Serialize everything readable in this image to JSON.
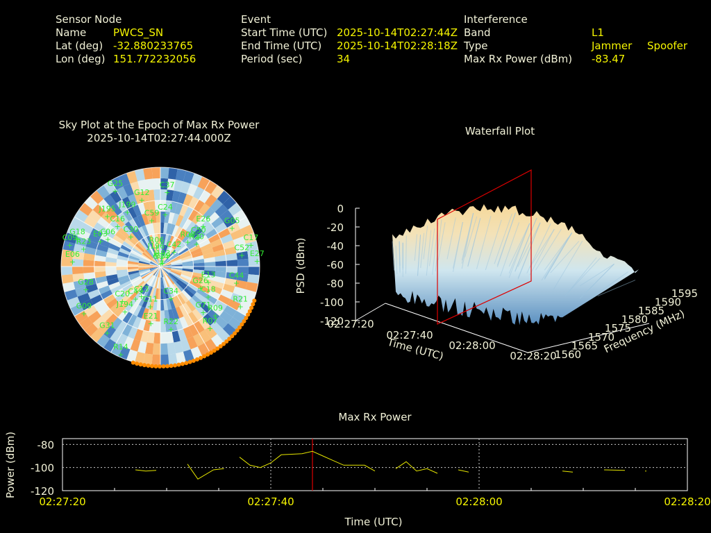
{
  "header": {
    "sensor": {
      "heading": "Sensor Node",
      "rows": [
        {
          "label": "Name",
          "value": "PWCS_SN"
        },
        {
          "label": "Lat (deg)",
          "value": "-32.880233765"
        },
        {
          "label": "Lon (deg)",
          "value": "151.772232056"
        }
      ]
    },
    "event": {
      "heading": "Event",
      "rows": [
        {
          "label": "Start Time (UTC)",
          "value": "2025-10-14T02:27:44Z"
        },
        {
          "label": "End Time (UTC)",
          "value": "2025-10-14T02:28:18Z"
        },
        {
          "label": "Period (sec)",
          "value": "34"
        }
      ]
    },
    "interference": {
      "heading": "Interference",
      "rows": [
        {
          "label": "Band",
          "value": "L1",
          "value2": ""
        },
        {
          "label": "Type",
          "value": "Jammer",
          "value2": "Spoofer"
        },
        {
          "label": "Max Rx Power (dBm)",
          "value": "-83.47",
          "value2": ""
        }
      ]
    }
  },
  "colors": {
    "label": "#f2f2d8",
    "value": "#f5f500",
    "satellite": "#33ee33",
    "track": "#ff8c00",
    "marker": "#dd0000",
    "line": "#e6e600"
  },
  "chart_data": [
    {
      "type": "skyplot",
      "title": "Sky Plot at the Epoch of Max Rx Power",
      "subtitle": "2025-10-14T02:27:44.000Z",
      "satellites": [
        {
          "id": "G14",
          "az": 5,
          "el": 85
        },
        {
          "id": "J193",
          "az": 10,
          "el": 82
        },
        {
          "id": "G29",
          "az": 20,
          "el": 84
        },
        {
          "id": "J196",
          "az": 345,
          "el": 75
        },
        {
          "id": "R06",
          "az": 350,
          "el": 70
        },
        {
          "id": "C42",
          "az": 38,
          "el": 70
        },
        {
          "id": "R08",
          "az": 45,
          "el": 55
        },
        {
          "id": "R20",
          "az": 55,
          "el": 50
        },
        {
          "id": "C50",
          "az": 50,
          "el": 45
        },
        {
          "id": "C30",
          "az": 318,
          "el": 50
        },
        {
          "id": "C59",
          "az": 350,
          "el": 45
        },
        {
          "id": "C24",
          "az": 5,
          "el": 40
        },
        {
          "id": "E26",
          "az": 45,
          "el": 35
        },
        {
          "id": "C16",
          "az": 315,
          "el": 35
        },
        {
          "id": "J199",
          "az": 330,
          "el": 30
        },
        {
          "id": "G12",
          "az": 345,
          "el": 25
        },
        {
          "id": "C37",
          "az": 5,
          "el": 20
        },
        {
          "id": "C06",
          "az": 300,
          "el": 35
        },
        {
          "id": "E03",
          "az": 295,
          "el": 30
        },
        {
          "id": "J195",
          "az": 315,
          "el": 22
        },
        {
          "id": "G05",
          "az": 60,
          "el": 15
        },
        {
          "id": "R23",
          "az": 285,
          "el": 18
        },
        {
          "id": "G18",
          "az": 290,
          "el": 10
        },
        {
          "id": "C09",
          "az": 285,
          "el": 5
        },
        {
          "id": "C52",
          "az": 80,
          "el": 15
        },
        {
          "id": "C17",
          "az": 75,
          "el": 5
        },
        {
          "id": "E27",
          "az": 85,
          "el": 2
        },
        {
          "id": "G25",
          "az": 330,
          "el": 8
        },
        {
          "id": "E06",
          "az": 275,
          "el": 10
        },
        {
          "id": "E13",
          "az": 105,
          "el": 45
        },
        {
          "id": "G26",
          "az": 115,
          "el": 50
        },
        {
          "id": "C18",
          "az": 120,
          "el": 40
        },
        {
          "id": "C44",
          "az": 100,
          "el": 20
        },
        {
          "id": "G28",
          "az": 255,
          "el": 20
        },
        {
          "id": "C49",
          "az": 220,
          "el": 55
        },
        {
          "id": "C13",
          "az": 215,
          "el": 60
        },
        {
          "id": "C20",
          "az": 230,
          "el": 45
        },
        {
          "id": "C11",
          "az": 195,
          "el": 55
        },
        {
          "id": "C34",
          "az": 160,
          "el": 62
        },
        {
          "id": "G71",
          "az": 135,
          "el": 35
        },
        {
          "id": "R09",
          "az": 130,
          "el": 25
        },
        {
          "id": "R21",
          "az": 115,
          "el": 10
        },
        {
          "id": "R07",
          "az": 140,
          "el": 20
        },
        {
          "id": "R22",
          "az": 170,
          "el": 35
        },
        {
          "id": "E21",
          "az": 190,
          "el": 40
        },
        {
          "id": "J194",
          "az": 220,
          "el": 40
        },
        {
          "id": "G09",
          "az": 240,
          "el": 10
        },
        {
          "id": "G31",
          "az": 220,
          "el": 15
        },
        {
          "id": "R14",
          "az": 205,
          "el": 5
        }
      ]
    },
    {
      "type": "surface3d",
      "title": "Waterfall Plot",
      "xlabel": "Time (UTC)",
      "ylabel": "Frequency (MHz)",
      "zlabel": "PSD (dBm)",
      "x_ticks": [
        "02:27:20",
        "02:27:40",
        "02:28:00",
        "02:28:20"
      ],
      "y_ticks": [
        "1560",
        "1565",
        "1570",
        "1575",
        "1580",
        "1585",
        "1590",
        "1595"
      ],
      "z_ticks": [
        "0",
        "-20",
        "-40",
        "-60",
        "-80",
        "-100",
        "-120"
      ],
      "xlim": [
        "02:27:20",
        "02:28:20"
      ],
      "ylim": [
        1560,
        1595
      ],
      "zlim": [
        -120,
        0
      ],
      "marker_time": "02:27:44"
    },
    {
      "type": "line",
      "title": "Max Rx Power",
      "xlabel": "Time (UTC)",
      "ylabel": "Power (dBm)",
      "x_ticks": [
        "02:27:20",
        "02:27:40",
        "02:28:00",
        "02:28:20"
      ],
      "y_ticks": [
        -80,
        -100,
        -120
      ],
      "xlim_sec": [
        0,
        60
      ],
      "ylim": [
        -120,
        -75
      ],
      "marker_sec": 24,
      "segments": [
        [
          [
            7,
            -102
          ],
          [
            8,
            -103
          ],
          [
            9,
            -102.5
          ]
        ],
        [
          [
            12,
            -97
          ],
          [
            13,
            -110
          ],
          [
            14.5,
            -102
          ],
          [
            15.5,
            -101
          ]
        ],
        [
          [
            17,
            -91
          ],
          [
            18,
            -98
          ],
          [
            19,
            -100
          ],
          [
            20,
            -96
          ],
          [
            21,
            -89
          ],
          [
            22,
            -88.5
          ],
          [
            23,
            -88
          ],
          [
            24,
            -86
          ],
          [
            25,
            -90
          ],
          [
            26,
            -94
          ],
          [
            27,
            -98
          ],
          [
            28,
            -98
          ],
          [
            29,
            -98
          ],
          [
            30,
            -103
          ]
        ],
        [
          [
            32,
            -101
          ],
          [
            33,
            -95
          ],
          [
            34,
            -103
          ],
          [
            35,
            -101
          ],
          [
            36,
            -105
          ]
        ],
        [
          [
            38,
            -102
          ],
          [
            39,
            -104
          ]
        ],
        [
          [
            48,
            -103
          ],
          [
            49,
            -104
          ]
        ],
        [
          [
            52,
            -102
          ],
          [
            54,
            -102.5
          ]
        ],
        [
          [
            56,
            -103
          ]
        ]
      ]
    }
  ]
}
